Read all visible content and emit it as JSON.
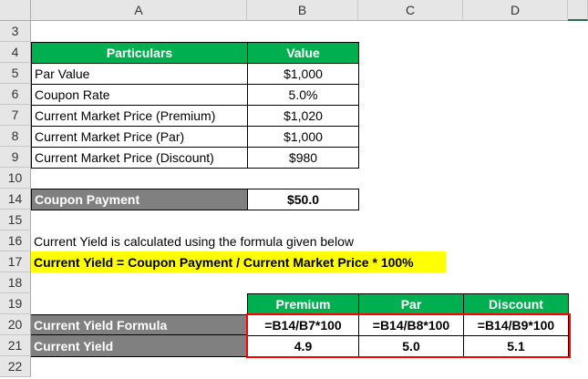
{
  "columns": [
    "A",
    "B",
    "C",
    "D"
  ],
  "rows": [
    "3",
    "4",
    "5",
    "6",
    "7",
    "8",
    "9",
    "10",
    "14",
    "15",
    "16",
    "17",
    "18",
    "19",
    "20",
    "21",
    "22"
  ],
  "table1": {
    "header": [
      "Particulars",
      "Value"
    ],
    "rows": [
      [
        "Par Value",
        "$1,000"
      ],
      [
        "Coupon Rate",
        "5.0%"
      ],
      [
        "Current Market Price (Premium)",
        "$1,020"
      ],
      [
        "Current Market Price (Par)",
        "$1,000"
      ],
      [
        "Current Market Price (Discount)",
        "$980"
      ]
    ]
  },
  "coupon": {
    "label": "Coupon Payment",
    "value": "$50.0"
  },
  "note": "Current Yield is calculated using the formula given below",
  "formula": "Current Yield = Coupon Payment / Current Market Price * 100%",
  "table2": {
    "header": [
      "Premium",
      "Par",
      "Discount"
    ],
    "formula_label": "Current Yield Formula",
    "formulas": [
      "=B14/B7*100",
      "=B14/B8*100",
      "=B14/B9*100"
    ],
    "yield_label": "Current Yield",
    "yields": [
      "4.9",
      "5.0",
      "5.1"
    ]
  },
  "colors": {
    "green": "#00b050",
    "grey": "#808080",
    "yellow": "#ffff00",
    "red": "#ff0000"
  }
}
